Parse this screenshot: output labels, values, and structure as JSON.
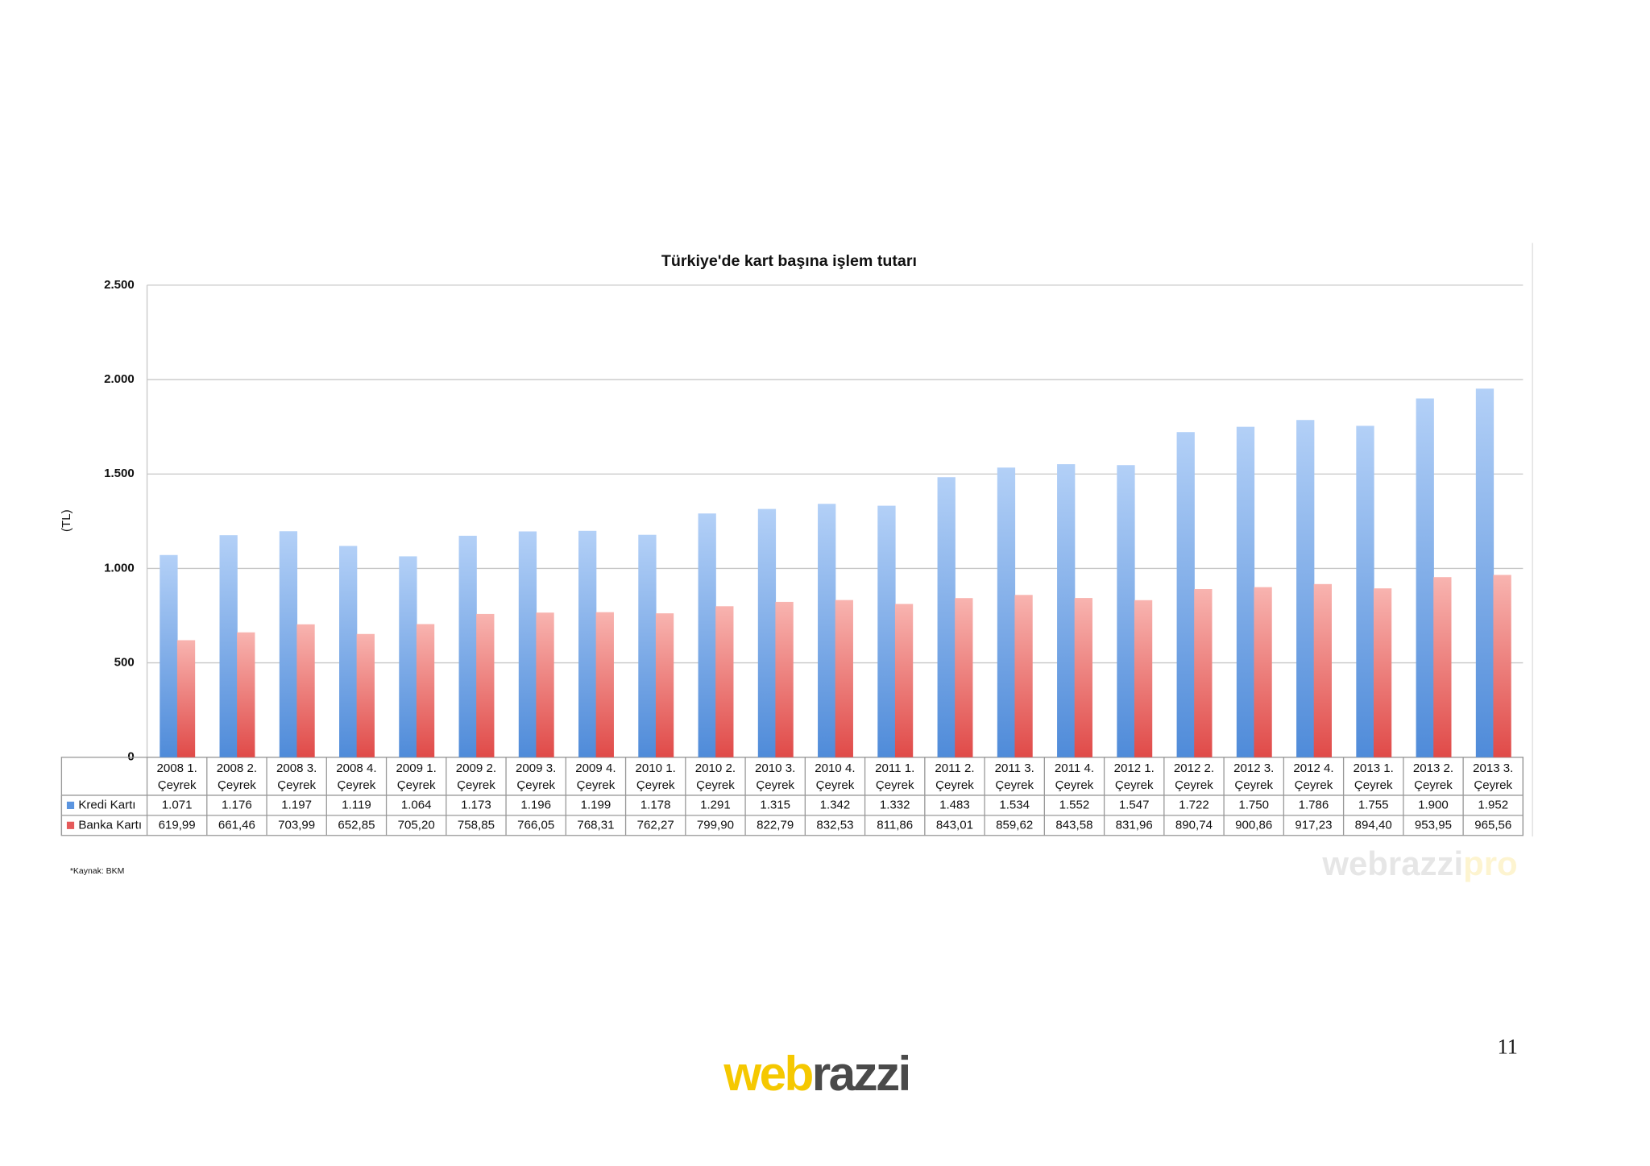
{
  "chart_data": {
    "type": "bar",
    "title": "Türkiye'de kart başına işlem tutarı",
    "y_label": "(TL)",
    "categories": [
      "2008 1. Çeyrek",
      "2008 2. Çeyrek",
      "2008 3. Çeyrek",
      "2008 4. Çeyrek",
      "2009 1. Çeyrek",
      "2009 2. Çeyrek",
      "2009 3. Çeyrek",
      "2009 4. Çeyrek",
      "2010 1. Çeyrek",
      "2010 2. Çeyrek",
      "2010 3. Çeyrek",
      "2010 4. Çeyrek",
      "2011 1. Çeyrek",
      "2011 2. Çeyrek",
      "2011 3. Çeyrek",
      "2011 4. Çeyrek",
      "2012 1. Çeyrek",
      "2012 2. Çeyrek",
      "2012 3. Çeyrek",
      "2012 4. Çeyrek",
      "2013 1. Çeyrek",
      "2013 2. Çeyrek",
      "2013 3. Çeyrek"
    ],
    "series": [
      {
        "name": "Kredi Kartı",
        "color": "#5b95e0",
        "values": [
          1071,
          1176,
          1197,
          1119,
          1064,
          1173,
          1196,
          1199,
          1178,
          1291,
          1315,
          1342,
          1332,
          1483,
          1534,
          1552,
          1547,
          1722,
          1750,
          1786,
          1755,
          1900,
          1952
        ],
        "value_labels": [
          "1.071",
          "1.176",
          "1.197",
          "1.119",
          "1.064",
          "1.173",
          "1.196",
          "1.199",
          "1.178",
          "1.291",
          "1.315",
          "1.342",
          "1.332",
          "1.483",
          "1.534",
          "1.552",
          "1.547",
          "1.722",
          "1.750",
          "1.786",
          "1.755",
          "1.900",
          "1.952"
        ]
      },
      {
        "name": "Banka Kartı",
        "color": "#e55a5a",
        "values": [
          619.99,
          661.46,
          703.99,
          652.85,
          705.2,
          758.85,
          766.05,
          768.31,
          762.27,
          799.9,
          822.79,
          832.53,
          811.86,
          843.01,
          859.62,
          843.58,
          831.96,
          890.74,
          900.86,
          917.23,
          894.4,
          953.95,
          965.56
        ],
        "value_labels": [
          "619,99",
          "661,46",
          "703,99",
          "652,85",
          "705,20",
          "758,85",
          "766,05",
          "768,31",
          "762,27",
          "799,90",
          "822,79",
          "832,53",
          "811,86",
          "843,01",
          "859,62",
          "843,58",
          "831,96",
          "890,74",
          "900,86",
          "917,23",
          "894,40",
          "953,95",
          "965,56"
        ]
      }
    ],
    "ylim": [
      0,
      2500
    ],
    "yticks": [
      0,
      500,
      {
        "value": 1000,
        "label": "1.000"
      },
      {
        "value": 1500,
        "label": "1.500"
      },
      {
        "value": 2000,
        "label": "2.000"
      },
      {
        "value": 2500,
        "label": "2.500"
      }
    ],
    "grid": true,
    "source": "*Kaynak: BKM"
  },
  "watermark": [
    "webrazzi",
    "pro"
  ],
  "page_number": "11",
  "logo": [
    "web",
    "razzi"
  ]
}
